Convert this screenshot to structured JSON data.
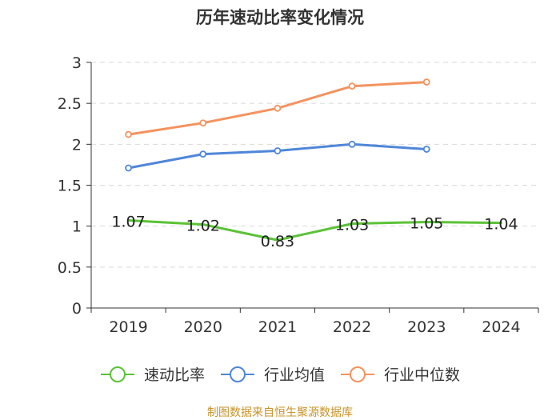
{
  "chart_data": {
    "type": "line",
    "title": "历年速动比率变化情况",
    "categories": [
      "2019",
      "2020",
      "2021",
      "2022",
      "2023",
      "2024"
    ],
    "ylim": [
      0,
      3
    ],
    "yticks": [
      "0",
      "0.5",
      "1",
      "1.5",
      "2",
      "2.5",
      "3"
    ],
    "ytick_values": [
      0,
      0.5,
      1,
      1.5,
      2,
      2.5,
      3
    ],
    "grid": true,
    "legend_position": "bottom",
    "series": [
      {
        "name": "速动比率",
        "color": "#5bc236",
        "values": [
          1.07,
          1.02,
          0.83,
          1.03,
          1.05,
          1.04
        ],
        "labels": [
          "1.07",
          "1.02",
          "0.83",
          "1.03",
          "1.05",
          "1.04"
        ],
        "show_markers": false,
        "show_labels": true
      },
      {
        "name": "行业均值",
        "color": "#4f86d9",
        "values": [
          1.71,
          1.88,
          1.92,
          2.0,
          1.94,
          null
        ],
        "show_markers": true,
        "show_labels": false
      },
      {
        "name": "行业中位数",
        "color": "#f5925e",
        "values": [
          2.12,
          2.26,
          2.44,
          2.71,
          2.76,
          null
        ],
        "show_markers": true,
        "show_labels": false
      }
    ],
    "source": "制图数据来自恒生聚源数据库"
  }
}
